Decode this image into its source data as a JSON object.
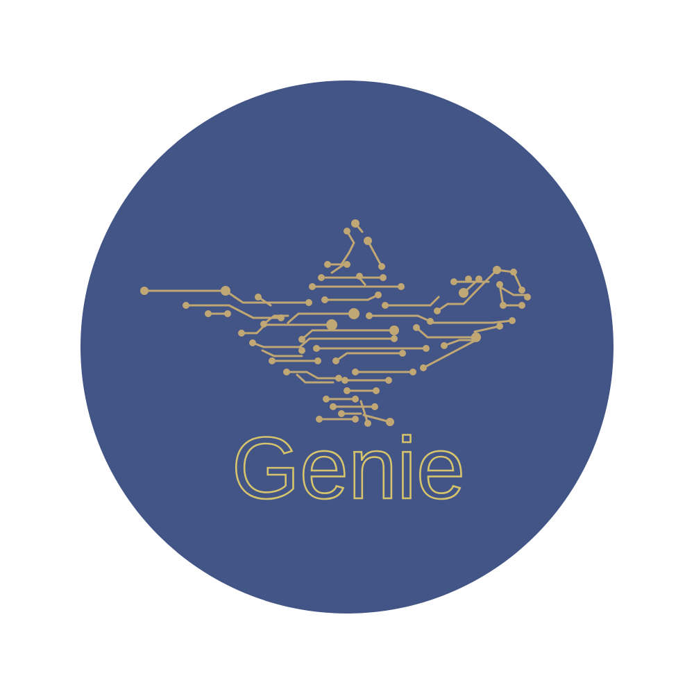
{
  "logo": {
    "wordmark": "Genie",
    "icon_name": "circuit-genie-lamp-icon",
    "colors": {
      "background": "#ffffff",
      "badge": "#435586",
      "circuit": "#C1A773",
      "wordmark": "#D6C46D"
    }
  }
}
